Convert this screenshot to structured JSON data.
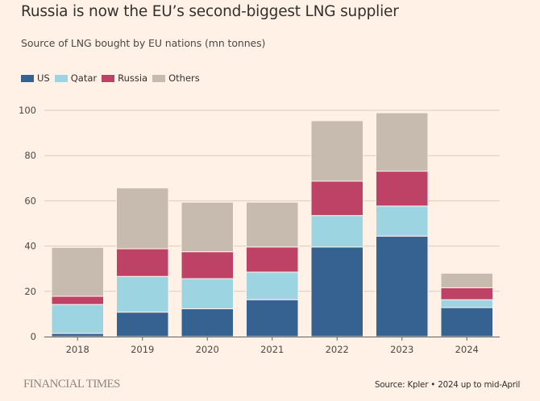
{
  "header": {
    "title": "Russia is now the EU’s second-biggest LNG supplier",
    "subtitle": "Source of LNG bought by EU nations (mn tonnes)"
  },
  "footer": {
    "brand": "FINANCIAL TIMES",
    "source": "Source: Kpler • 2024 up to mid-April"
  },
  "colors": {
    "background": "#fff1e5",
    "gridline": "#d9cbc0",
    "axis": "#66605c",
    "US": "#356291",
    "Qatar": "#9dd4e2",
    "Russia": "#bd4266",
    "Others": "#c7bbb0"
  },
  "chart_data": {
    "type": "bar",
    "stacked": true,
    "title": "Russia is now the EU’s second-biggest LNG supplier",
    "subtitle": "Source of LNG bought by EU nations (mn tonnes)",
    "xlabel": "",
    "ylabel": "",
    "categories": [
      "2018",
      "2019",
      "2020",
      "2021",
      "2022",
      "2023",
      "2024"
    ],
    "series": [
      {
        "name": "US",
        "color": "#356291",
        "values": [
          1.4,
          10.8,
          12.3,
          16.3,
          39.6,
          44.4,
          12.8
        ]
      },
      {
        "name": "Qatar",
        "color": "#9dd4e2",
        "values": [
          12.8,
          15.8,
          13.3,
          12.2,
          13.9,
          13.3,
          3.5
        ]
      },
      {
        "name": "Russia",
        "color": "#bd4266",
        "values": [
          3.6,
          12.2,
          11.9,
          11.1,
          15.2,
          15.4,
          5.3
        ]
      },
      {
        "name": "Others",
        "color": "#c7bbb0",
        "values": [
          21.6,
          26.9,
          21.9,
          19.8,
          26.7,
          25.8,
          6.4
        ]
      }
    ],
    "ylim": [
      0,
      100
    ],
    "yticks": [
      0,
      20,
      40,
      60,
      80,
      100
    ],
    "grid": true,
    "legend": {
      "position": "top-left",
      "entries": [
        "US",
        "Qatar",
        "Russia",
        "Others"
      ]
    },
    "annotations": [
      "Source: Kpler • 2024 up to mid-April"
    ]
  }
}
